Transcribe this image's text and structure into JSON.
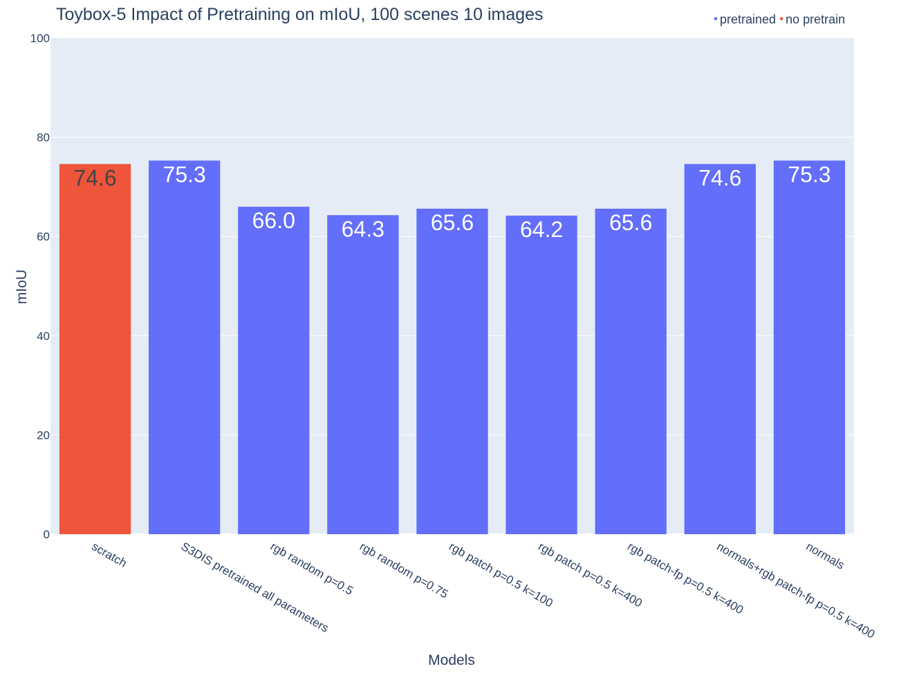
{
  "chart_data": {
    "type": "bar",
    "title": "Toybox-5 Impact of Pretraining on mIoU, 100 scenes 10 images",
    "xlabel": "Models",
    "ylabel": "mIoU",
    "ylim": [
      0,
      100
    ],
    "yticks": [
      0,
      20,
      40,
      60,
      80,
      100
    ],
    "grid": true,
    "legend_position": "top-right",
    "categories": [
      "scratch",
      "S3DIS pretrained all parameters",
      "rgb random p=0.5",
      "rgb random p=0.75",
      "rgb patch p=0.5 k=100",
      "rgb patch p=0.5 k=400",
      "rgb patch-fp p=0.5 k=400",
      "normals+rgb patch-fp p=0.5 k=400",
      "normals"
    ],
    "values": [
      74.6,
      75.3,
      66.0,
      64.3,
      65.6,
      64.2,
      65.6,
      74.6,
      75.3
    ],
    "labels": [
      "74.6",
      "75.3",
      "66.0",
      "64.3",
      "65.6",
      "64.2",
      "65.6",
      "74.6",
      "75.3"
    ],
    "groups": [
      "no pretrain",
      "pretrained",
      "pretrained",
      "pretrained",
      "pretrained",
      "pretrained",
      "pretrained",
      "pretrained",
      "pretrained"
    ],
    "series": [
      {
        "name": "pretrained",
        "color": "#636efa",
        "label_color": "#ffffff"
      },
      {
        "name": "no pretrain",
        "color": "#ef553b",
        "label_color": "#444444"
      }
    ],
    "plot_background": "#e5ecf6"
  }
}
